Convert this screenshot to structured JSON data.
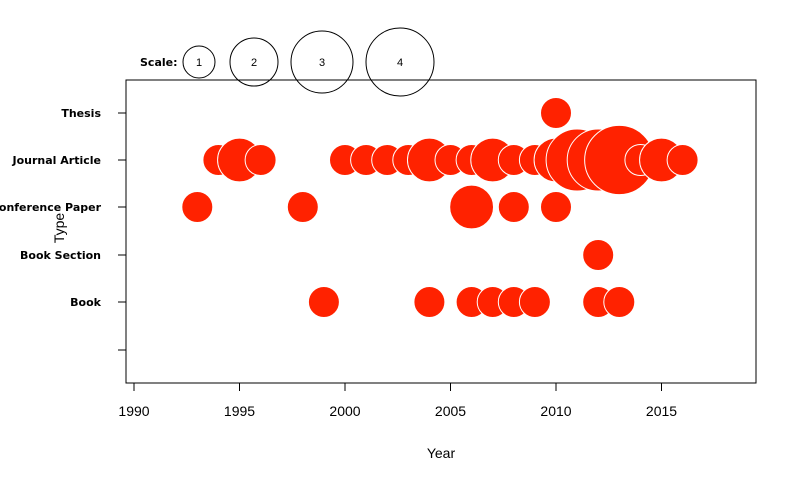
{
  "chart_data": {
    "type": "scatter",
    "title": "",
    "xlabel": "Year",
    "ylabel": "Type",
    "xlim": [
      1990,
      2019
    ],
    "x_ticks": [
      1990,
      1995,
      2000,
      2005,
      2010,
      2015
    ],
    "categories": [
      "Book",
      "Book Section",
      "Conference Paper",
      "Journal Article",
      "Thesis"
    ],
    "marker_color": "#ff2200",
    "size_scale_label": "Scale:",
    "size_scale": [
      1,
      2,
      3,
      4
    ],
    "points": [
      {
        "x": 2010,
        "type": "Thesis",
        "size": 1
      },
      {
        "x": 1994,
        "type": "Journal Article",
        "size": 1
      },
      {
        "x": 1995,
        "type": "Journal Article",
        "size": 2
      },
      {
        "x": 1996,
        "type": "Journal Article",
        "size": 1
      },
      {
        "x": 2000,
        "type": "Journal Article",
        "size": 1
      },
      {
        "x": 2001,
        "type": "Journal Article",
        "size": 1
      },
      {
        "x": 2002,
        "type": "Journal Article",
        "size": 1
      },
      {
        "x": 2003,
        "type": "Journal Article",
        "size": 1
      },
      {
        "x": 2004,
        "type": "Journal Article",
        "size": 2
      },
      {
        "x": 2005,
        "type": "Journal Article",
        "size": 1
      },
      {
        "x": 2006,
        "type": "Journal Article",
        "size": 1
      },
      {
        "x": 2007,
        "type": "Journal Article",
        "size": 2
      },
      {
        "x": 2008,
        "type": "Journal Article",
        "size": 1
      },
      {
        "x": 2009,
        "type": "Journal Article",
        "size": 1
      },
      {
        "x": 2010,
        "type": "Journal Article",
        "size": 2
      },
      {
        "x": 2011,
        "type": "Journal Article",
        "size": 4
      },
      {
        "x": 2012,
        "type": "Journal Article",
        "size": 4
      },
      {
        "x": 2013,
        "type": "Journal Article",
        "size": 5
      },
      {
        "x": 2014,
        "type": "Journal Article",
        "size": 1
      },
      {
        "x": 2015,
        "type": "Journal Article",
        "size": 2
      },
      {
        "x": 2016,
        "type": "Journal Article",
        "size": 1
      },
      {
        "x": 1993,
        "type": "Conference Paper",
        "size": 1
      },
      {
        "x": 1998,
        "type": "Conference Paper",
        "size": 1
      },
      {
        "x": 2006,
        "type": "Conference Paper",
        "size": 2
      },
      {
        "x": 2008,
        "type": "Conference Paper",
        "size": 1
      },
      {
        "x": 2010,
        "type": "Conference Paper",
        "size": 1
      },
      {
        "x": 2012,
        "type": "Book Section",
        "size": 1
      },
      {
        "x": 1999,
        "type": "Book",
        "size": 1
      },
      {
        "x": 2004,
        "type": "Book",
        "size": 1
      },
      {
        "x": 2006,
        "type": "Book",
        "size": 1
      },
      {
        "x": 2007,
        "type": "Book",
        "size": 1
      },
      {
        "x": 2008,
        "type": "Book",
        "size": 1
      },
      {
        "x": 2009,
        "type": "Book",
        "size": 1
      },
      {
        "x": 2012,
        "type": "Book",
        "size": 1
      },
      {
        "x": 2013,
        "type": "Book",
        "size": 1
      }
    ]
  }
}
